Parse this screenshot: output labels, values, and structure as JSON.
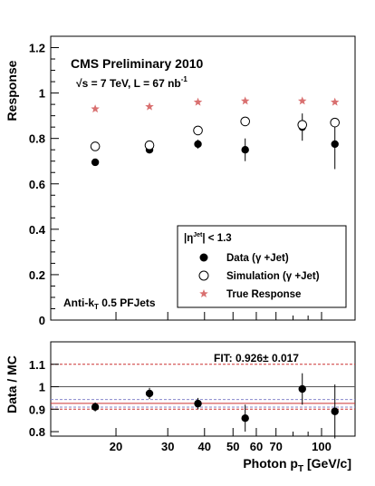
{
  "colors": {
    "data": "#000000",
    "simulation": "#000000",
    "true_response": "#d97070",
    "fit_line": "#cc3333",
    "ref_line": "#555555",
    "unity_line": "#8888cc"
  },
  "header": {
    "title": "CMS Preliminary 2010",
    "energy": "√s = 7 TeV, L = 67 nb",
    "energy_sup": "-1",
    "algo": "Anti-k",
    "algo_sub": "T",
    "algo_rest": " 0.5 PFJets"
  },
  "legend": {
    "header": "|η",
    "header_sup": "Jet",
    "header_rest": "| < 1.3",
    "items": [
      {
        "label": "Data (γ +Jet)",
        "marker": "filled-circle"
      },
      {
        "label": "Simulation (γ +Jet)",
        "marker": "open-circle"
      },
      {
        "label": "True Response",
        "marker": "star"
      }
    ]
  },
  "fit_text": "FIT: 0.926± 0.017",
  "xaxis_label_main": "Photon p",
  "xaxis_label_sub": "T",
  "xaxis_label_unit": " [GeV/c]",
  "chart_data": [
    {
      "type": "scatter",
      "ylabel": "Response",
      "ylim": [
        0,
        1.25
      ],
      "xscale": "log",
      "xlim": [
        12,
        130
      ],
      "yticks": [
        0,
        0.2,
        0.4,
        0.6,
        0.8,
        1,
        1.2
      ],
      "ytick_labels": [
        "0",
        "0.2",
        "0.4",
        "0.6",
        "0.8",
        "1",
        "1.2"
      ],
      "series": [
        {
          "name": "Data (γ +Jet)",
          "marker": "filled-circle",
          "x": [
            17,
            26,
            38,
            55,
            86,
            111
          ],
          "y": [
            0.695,
            0.75,
            0.775,
            0.75,
            0.85,
            0.775
          ],
          "yerr": [
            0.008,
            0.012,
            0.02,
            0.05,
            0.06,
            0.11
          ]
        },
        {
          "name": "Simulation (γ +Jet)",
          "marker": "open-circle",
          "x": [
            17,
            26,
            38,
            55,
            86,
            111
          ],
          "y": [
            0.765,
            0.77,
            0.835,
            0.875,
            0.86,
            0.87
          ],
          "yerr": [
            0.012,
            0.01,
            0.01,
            0.012,
            0.015,
            0.02
          ]
        },
        {
          "name": "True Response",
          "marker": "star",
          "x": [
            17,
            26,
            38,
            55,
            86,
            111
          ],
          "y": [
            0.93,
            0.94,
            0.96,
            0.965,
            0.965,
            0.96
          ]
        }
      ],
      "legend_position": "bottom-right"
    },
    {
      "type": "scatter",
      "ylabel": "Data / MC",
      "ylim": [
        0.78,
        1.2
      ],
      "xscale": "log",
      "xlim": [
        12,
        130
      ],
      "yticks": [
        0.8,
        0.9,
        1.0,
        1.1
      ],
      "ytick_labels": [
        "0.8",
        "0.9",
        "1",
        "1.1"
      ],
      "xticks": [
        20,
        30,
        40,
        50,
        60,
        70,
        100
      ],
      "xtick_labels": [
        "20",
        "30",
        "40",
        "50",
        "60",
        "70",
        "100"
      ],
      "series": [
        {
          "name": "Data / MC",
          "marker": "filled-circle",
          "x": [
            17,
            26,
            38,
            55,
            86,
            111
          ],
          "y": [
            0.91,
            0.97,
            0.925,
            0.86,
            0.99,
            0.89
          ],
          "yerr": [
            0.02,
            0.025,
            0.025,
            0.06,
            0.07,
            0.12
          ]
        }
      ],
      "fit_value": 0.926,
      "fit_error": 0.017,
      "reference_line": 1.0
    }
  ]
}
